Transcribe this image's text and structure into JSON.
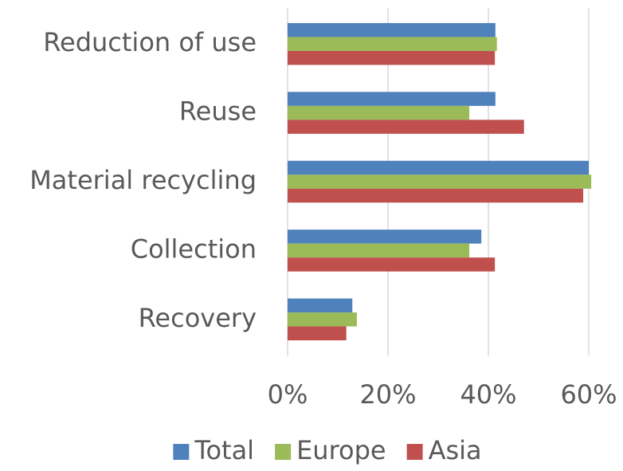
{
  "chart_data": {
    "type": "hbar",
    "categories": [
      "Reduction of use",
      "Reuse",
      "Material recycling",
      "Collection",
      "Recovery"
    ],
    "series": [
      {
        "name": "Total",
        "color": "#4f81bd",
        "values": [
          41.4,
          41.4,
          60,
          38.6,
          12.9
        ]
      },
      {
        "name": "Europe",
        "color": "#9bbb59",
        "values": [
          41.7,
          36.2,
          60.5,
          36.2,
          13.8
        ]
      },
      {
        "name": "Asia",
        "color": "#c0504d",
        "values": [
          41.3,
          47.1,
          58.9,
          41.3,
          11.7
        ]
      }
    ],
    "xlim": [
      0,
      60
    ],
    "xticks": [
      {
        "value": 0,
        "label": "0%"
      },
      {
        "value": 20,
        "label": "20%"
      },
      {
        "value": 40,
        "label": "40%"
      },
      {
        "value": 60,
        "label": "60%"
      }
    ],
    "grid": true,
    "legend": "bottom"
  }
}
